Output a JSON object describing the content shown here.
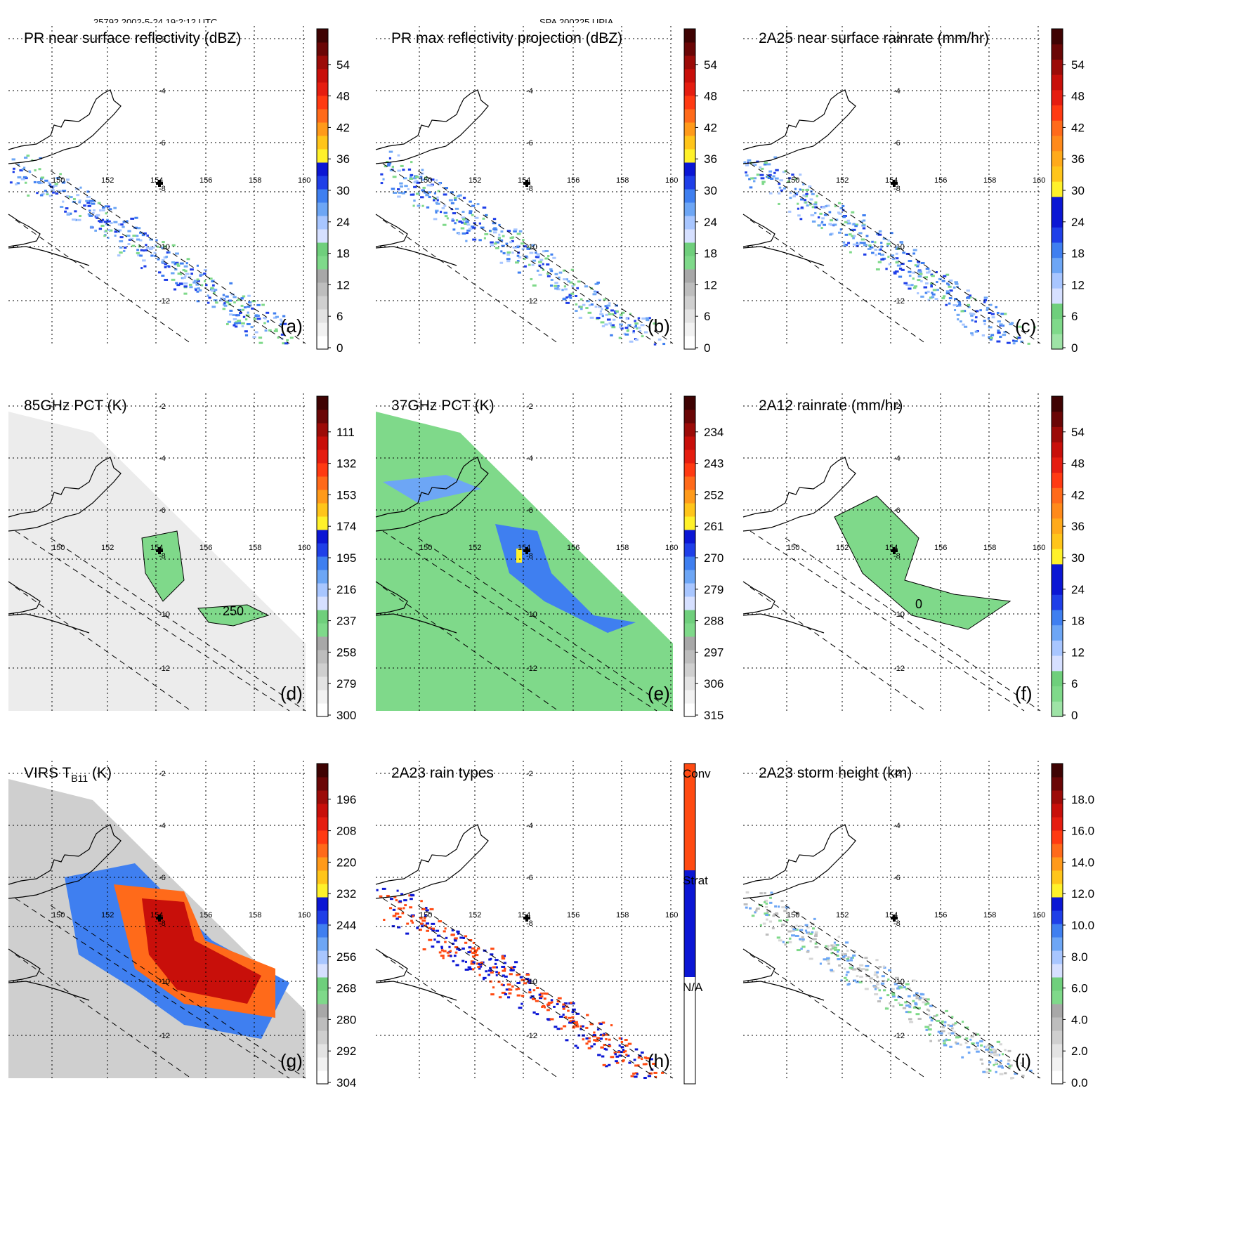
{
  "header": {
    "left": "25792 2002-5-24 19:2:12 UTC",
    "center": "SPA 200225 UPIA"
  },
  "lon_labels": [
    "150",
    "152",
    "154",
    "156",
    "158",
    "160"
  ],
  "lat_labels": [
    "-2",
    "-4",
    "-6",
    "-8",
    "-10",
    "-12"
  ],
  "chart_data": [
    {
      "id": "a",
      "type": "heatmap",
      "title": "PR near surface reflectivity (dBZ)",
      "letter": "(a)",
      "colorbar": {
        "kind": "dbz",
        "ticks": [
          "0",
          "6",
          "12",
          "18",
          "24",
          "30",
          "36",
          "42",
          "48",
          "54"
        ]
      },
      "field": "sparse-along-track"
    },
    {
      "id": "b",
      "type": "heatmap",
      "title": "PR max reflectivity projection (dBZ)",
      "letter": "(b)",
      "colorbar": {
        "kind": "dbz",
        "ticks": [
          "0",
          "6",
          "12",
          "18",
          "24",
          "30",
          "36",
          "42",
          "48",
          "54"
        ]
      },
      "field": "sparse-along-track"
    },
    {
      "id": "c",
      "type": "heatmap",
      "title": "2A25 near surface rainrate (mm/hr)",
      "letter": "(c)",
      "colorbar": {
        "kind": "rain",
        "ticks": [
          "0",
          "6",
          "12",
          "18",
          "24",
          "30",
          "36",
          "42",
          "48",
          "54"
        ]
      },
      "field": "sparse-along-track"
    },
    {
      "id": "d",
      "type": "heatmap",
      "title": "85GHz PCT (K)",
      "letter": "(d)",
      "colorbar": {
        "kind": "pct",
        "ticks": [
          "300",
          "279",
          "258",
          "237",
          "216",
          "195",
          "174",
          "153",
          "132",
          "111"
        ]
      },
      "field": "swath-gray",
      "contour_label": "250"
    },
    {
      "id": "e",
      "type": "heatmap",
      "title": "37GHz PCT (K)",
      "letter": "(e)",
      "colorbar": {
        "kind": "pct",
        "ticks": [
          "315",
          "306",
          "297",
          "288",
          "279",
          "270",
          "261",
          "252",
          "243",
          "234"
        ]
      },
      "field": "swath-green"
    },
    {
      "id": "f",
      "type": "heatmap",
      "title": "2A12 rainrate (mm/hr)",
      "letter": "(f)",
      "colorbar": {
        "kind": "rain",
        "ticks": [
          "0",
          "6",
          "12",
          "18",
          "24",
          "30",
          "36",
          "42",
          "48",
          "54"
        ]
      },
      "field": "cloud-shield",
      "contour_label": "0"
    },
    {
      "id": "g",
      "type": "heatmap",
      "title": "VIRS T",
      "title_sub": "B11",
      "title_tail": " (K)",
      "letter": "(g)",
      "colorbar": {
        "kind": "virs",
        "ticks": [
          "304",
          "292",
          "280",
          "268",
          "256",
          "244",
          "232",
          "220",
          "208",
          "196"
        ]
      },
      "field": "swath-ir"
    },
    {
      "id": "h",
      "type": "heatmap",
      "title": "2A23 rain types",
      "letter": "(h)",
      "colorbar": {
        "kind": "types",
        "ticks": [
          "N/A",
          "Strat",
          "Conv"
        ]
      },
      "field": "sparse-types"
    },
    {
      "id": "i",
      "type": "heatmap",
      "title": "2A23 storm height (km)",
      "letter": "(i)",
      "colorbar": {
        "kind": "height",
        "ticks": [
          "0.0",
          "2.0",
          "4.0",
          "6.0",
          "8.0",
          "10.0",
          "12.0",
          "14.0",
          "16.0",
          "18.0"
        ]
      },
      "field": "sparse-along-track"
    }
  ],
  "colors": {
    "gray_ramp": [
      "#ffffff",
      "#ebebeb",
      "#d6d6d6",
      "#bfbfbf",
      "#a8a8a8"
    ],
    "green": [
      "#7fd98a",
      "#6fcf7c"
    ],
    "light_blue": [
      "#d6e0ff",
      "#a8c6ff",
      "#6da6f5",
      "#3f7ff0"
    ],
    "blue": [
      "#1f3fe8",
      "#0b16d4"
    ],
    "yellow": "#fff12a",
    "orange": [
      "#ffc51a",
      "#ff9a1a",
      "#ff6a1a"
    ],
    "red": [
      "#ff3a12",
      "#e51d10",
      "#c80f0a",
      "#9c0b08",
      "#6a0606",
      "#3f0303"
    ],
    "strat": "#0b16d4",
    "conv": "#ff4a12",
    "storm_center": "#000000"
  }
}
